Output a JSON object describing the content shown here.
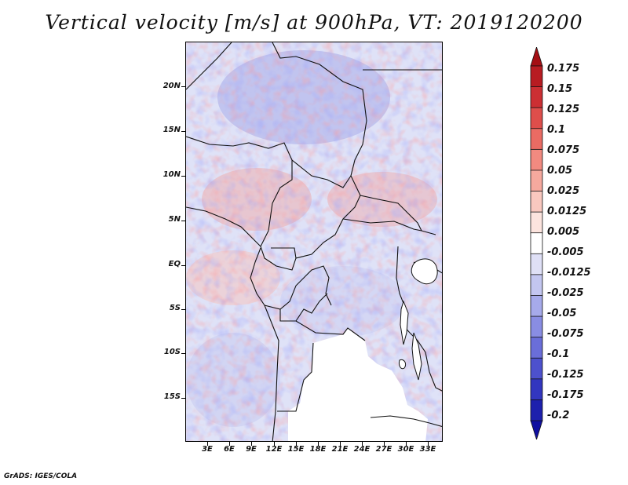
{
  "title": "Vertical velocity [m/s] at 900hPa, VT: 2019120200",
  "footer": "GrADS: IGES/COLA",
  "map": {
    "lat_labels": [
      "20N",
      "15N",
      "10N",
      "5N",
      "EQ",
      "5S",
      "10S",
      "15S"
    ],
    "lon_labels": [
      "3E",
      "6E",
      "9E",
      "12E",
      "15E",
      "18E",
      "21E",
      "24E",
      "27E",
      "30E",
      "33E"
    ]
  },
  "colorbar": {
    "labels": [
      "0.175",
      "0.15",
      "0.125",
      "0.1",
      "0.075",
      "0.05",
      "0.025",
      "0.0125",
      "0.005",
      "-0.005",
      "-0.0125",
      "-0.025",
      "-0.05",
      "-0.075",
      "-0.1",
      "-0.125",
      "-0.175",
      "-0.2"
    ],
    "colors": [
      "#a40f14",
      "#b81c22",
      "#cc2f33",
      "#de4e4b",
      "#ea6b63",
      "#f28a80",
      "#f6a99e",
      "#f9c8bf",
      "#fce4de",
      "#ffffff",
      "#dfe0f6",
      "#c3c6f0",
      "#a6aaea",
      "#898de3",
      "#6a6ed9",
      "#4d51cd",
      "#3236bf",
      "#1d20ad",
      "#100fa0"
    ]
  }
}
